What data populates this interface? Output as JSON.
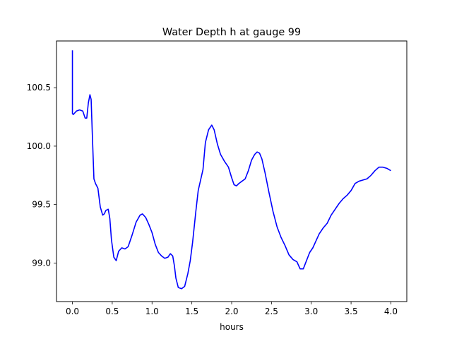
{
  "chart_data": {
    "type": "line",
    "title": "Water Depth h at gauge 99",
    "xlabel": "hours",
    "ylabel": "",
    "xlim": [
      -0.2,
      4.2
    ],
    "ylim": [
      98.67,
      100.9
    ],
    "xticks": [
      0.0,
      0.5,
      1.0,
      1.5,
      2.0,
      2.5,
      3.0,
      3.5,
      4.0
    ],
    "xtick_labels": [
      "0.0",
      "0.5",
      "1.0",
      "1.5",
      "2.0",
      "2.5",
      "3.0",
      "3.5",
      "4.0"
    ],
    "yticks": [
      99.0,
      99.5,
      100.0,
      100.5
    ],
    "ytick_labels": [
      "99.0",
      "99.5",
      "100.0",
      "100.5"
    ],
    "grid": false,
    "legend": "none",
    "series": [
      {
        "color": "#0000ff",
        "x": [
          0.0,
          0.0,
          0.01,
          0.05,
          0.09,
          0.13,
          0.16,
          0.18,
          0.2,
          0.22,
          0.235,
          0.25,
          0.27,
          0.29,
          0.32,
          0.35,
          0.38,
          0.4,
          0.42,
          0.45,
          0.47,
          0.49,
          0.52,
          0.55,
          0.58,
          0.62,
          0.66,
          0.7,
          0.75,
          0.8,
          0.85,
          0.88,
          0.92,
          0.96,
          1.0,
          1.04,
          1.08,
          1.12,
          1.16,
          1.2,
          1.23,
          1.26,
          1.28,
          1.3,
          1.33,
          1.37,
          1.41,
          1.45,
          1.48,
          1.51,
          1.55,
          1.58,
          1.6,
          1.64,
          1.67,
          1.71,
          1.75,
          1.78,
          1.82,
          1.86,
          1.91,
          1.96,
          2.0,
          2.03,
          2.06,
          2.09,
          2.13,
          2.17,
          2.21,
          2.25,
          2.29,
          2.32,
          2.35,
          2.38,
          2.42,
          2.47,
          2.52,
          2.57,
          2.62,
          2.67,
          2.72,
          2.77,
          2.82,
          2.86,
          2.9,
          2.94,
          2.98,
          3.02,
          3.06,
          3.1,
          3.15,
          3.2,
          3.25,
          3.3,
          3.35,
          3.4,
          3.45,
          3.5,
          3.55,
          3.6,
          3.65,
          3.7,
          3.75,
          3.8,
          3.85,
          3.9,
          3.95,
          4.0
        ],
        "y": [
          100.82,
          100.28,
          100.27,
          100.3,
          100.31,
          100.3,
          100.24,
          100.24,
          100.37,
          100.44,
          100.4,
          100.1,
          99.72,
          99.68,
          99.64,
          99.48,
          99.41,
          99.42,
          99.45,
          99.46,
          99.38,
          99.2,
          99.05,
          99.02,
          99.1,
          99.13,
          99.12,
          99.14,
          99.24,
          99.35,
          99.41,
          99.42,
          99.39,
          99.33,
          99.26,
          99.16,
          99.09,
          99.06,
          99.04,
          99.05,
          99.08,
          99.06,
          98.98,
          98.87,
          98.79,
          98.78,
          98.8,
          98.91,
          99.02,
          99.18,
          99.44,
          99.62,
          99.68,
          99.8,
          100.03,
          100.14,
          100.18,
          100.14,
          100.02,
          99.93,
          99.87,
          99.82,
          99.73,
          99.67,
          99.66,
          99.68,
          99.7,
          99.72,
          99.79,
          99.88,
          99.93,
          99.95,
          99.94,
          99.89,
          99.77,
          99.6,
          99.44,
          99.31,
          99.22,
          99.15,
          99.07,
          99.03,
          99.01,
          98.95,
          98.95,
          99.02,
          99.09,
          99.13,
          99.19,
          99.25,
          99.3,
          99.34,
          99.41,
          99.46,
          99.51,
          99.55,
          99.58,
          99.62,
          99.68,
          99.7,
          99.71,
          99.72,
          99.75,
          99.79,
          99.82,
          99.82,
          99.81,
          99.79
        ]
      }
    ]
  }
}
